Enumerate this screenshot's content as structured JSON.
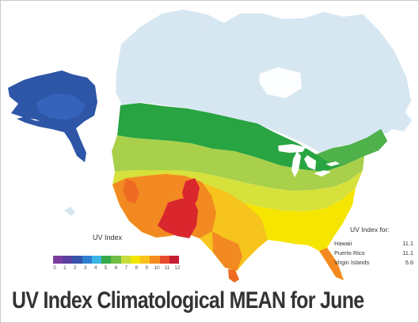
{
  "title": "UV Index Climatological MEAN for June",
  "legend": {
    "title": "UV Index",
    "ticks": [
      "0",
      "1",
      "2",
      "3",
      "4",
      "5",
      "6",
      "7",
      "8",
      "9",
      "10",
      "11",
      "12"
    ],
    "colors": [
      "#7a3d9e",
      "#5b3fa0",
      "#3653a8",
      "#2f7fd0",
      "#39b6e6",
      "#36a84b",
      "#6fbe44",
      "#c7dc3b",
      "#f3e600",
      "#f8c21a",
      "#f68b1f",
      "#e84a2c",
      "#c51e32"
    ]
  },
  "other_regions": {
    "title": "UV Index for:",
    "rows": [
      {
        "place": "Hawaii",
        "value": "11.1"
      },
      {
        "place": "Puerto Rico",
        "value": "11.1"
      },
      {
        "place": "Virgin Islands",
        "value": "5.6"
      }
    ]
  },
  "map_colors": {
    "canada": "#d7e7f2",
    "alaska": "#2d56a7",
    "alaska_bright": "#3563bc",
    "green_dark": "#29a442",
    "green_mid": "#4fb14a",
    "lime": "#a8d04b",
    "yellow_green": "#d7e13b",
    "yellow": "#f5e500",
    "yellow_orange": "#f6c41d",
    "orange": "#f28a21",
    "orange_red": "#ee6a22",
    "red": "#d9272d",
    "lakes": "#ffffff"
  }
}
